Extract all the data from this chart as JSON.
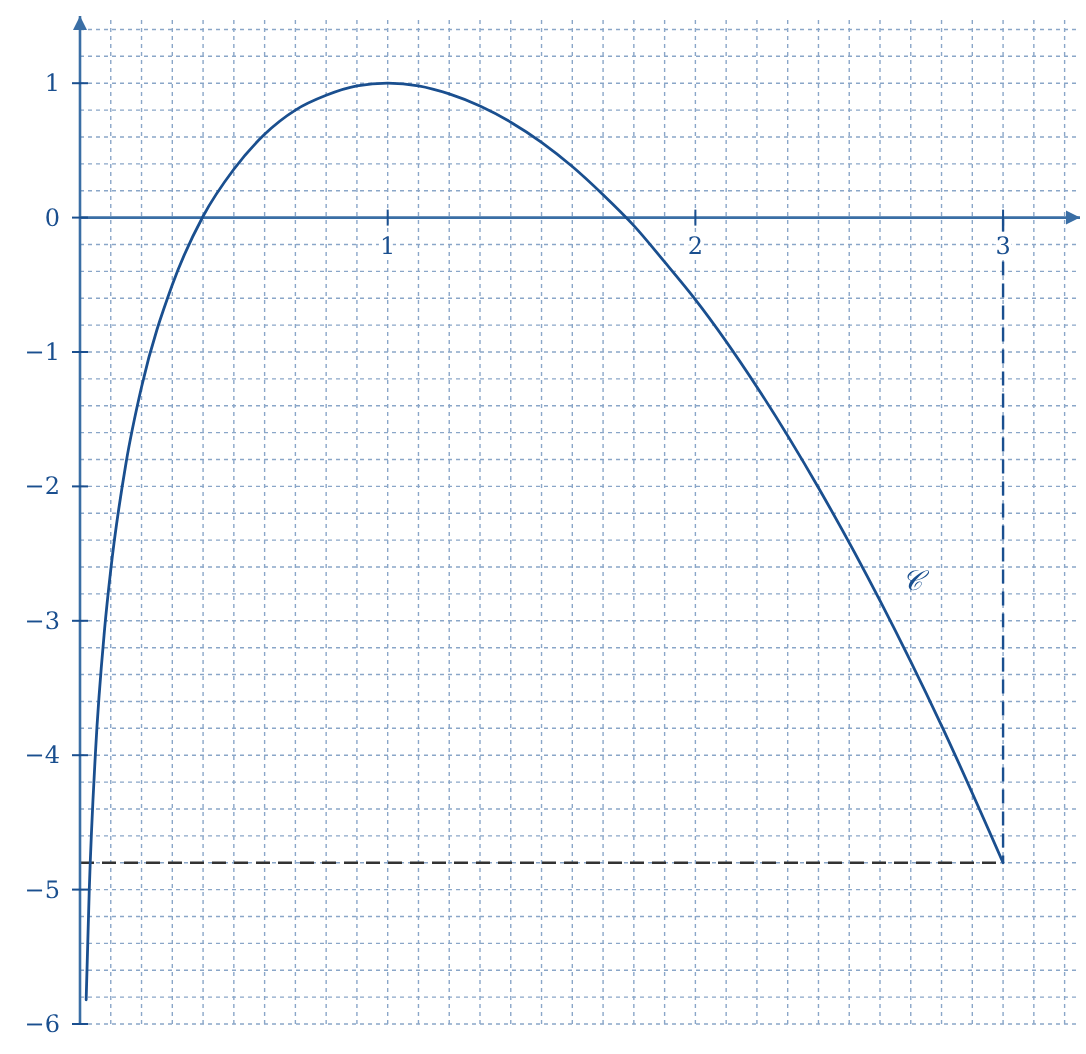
{
  "chart_data": {
    "type": "line",
    "x": [
      0.02,
      0.03,
      0.05,
      0.08,
      0.1,
      0.15,
      0.2,
      0.3,
      0.4,
      0.5,
      0.6,
      0.7,
      0.8,
      0.9,
      1,
      1.1,
      1.2,
      1.3,
      1.4,
      1.5,
      1.6,
      1.7,
      1.8,
      1.9,
      2,
      2.2,
      2.4,
      2.6,
      2.8,
      3
    ],
    "series": [
      {
        "color": "#1a4f8f",
        "values": [
          -5.82,
          -5.01,
          -3.99,
          -3.06,
          -2.62,
          -1.82,
          -1.26,
          -0.5,
          0.01,
          0.36,
          0.62,
          0.8,
          0.91,
          0.98,
          1,
          0.98,
          0.92,
          0.83,
          0.71,
          0.56,
          0.38,
          0.17,
          -0.06,
          -0.33,
          -0.61,
          -1.26,
          -2.01,
          -2.85,
          -3.78,
          -4.8
        ]
      }
    ],
    "xlim": [
      0,
      3.25
    ],
    "ylim": [
      -6,
      1.5
    ],
    "xticks": [
      {
        "value": 0.1,
        "label": null
      },
      {
        "value": 0.2,
        "label": null
      },
      {
        "value": 0.3,
        "label": null
      },
      {
        "value": 0.4,
        "label": null
      },
      {
        "value": 0.5,
        "label": null
      },
      {
        "value": 0.6,
        "label": null
      },
      {
        "value": 0.7,
        "label": null
      },
      {
        "value": 0.8,
        "label": null
      },
      {
        "value": 0.9,
        "label": null
      },
      1,
      {
        "value": 1.1,
        "label": null
      },
      {
        "value": 1.2,
        "label": null
      },
      {
        "value": 1.3,
        "label": null
      },
      {
        "value": 1.4,
        "label": null
      },
      {
        "value": 1.5,
        "label": null
      },
      {
        "value": 1.6,
        "label": null
      },
      {
        "value": 1.7,
        "label": null
      },
      {
        "value": 1.8,
        "label": null
      },
      {
        "value": 1.9,
        "label": null
      },
      2,
      {
        "value": 2.1,
        "label": null
      },
      {
        "value": 2.2,
        "label": null
      },
      {
        "value": 2.3,
        "label": null
      },
      {
        "value": 2.4,
        "label": null
      },
      {
        "value": 2.5,
        "label": null
      },
      {
        "value": 2.6,
        "label": null
      },
      {
        "value": 2.7,
        "label": null
      },
      {
        "value": 2.8,
        "label": null
      },
      {
        "value": 2.9,
        "label": null
      },
      3,
      {
        "value": 3.1,
        "label": null
      },
      {
        "value": 3.2,
        "label": null
      }
    ],
    "yticks": [
      -6,
      {
        "value": -5.8,
        "label": null
      },
      {
        "value": -5.6,
        "label": null
      },
      {
        "value": -5.4,
        "label": null
      },
      {
        "value": -5.2,
        "label": null
      },
      -5,
      {
        "value": -4.8,
        "label": null
      },
      {
        "value": -4.6,
        "label": null
      },
      {
        "value": -4.4,
        "label": null
      },
      {
        "value": -4.2,
        "label": null
      },
      -4,
      {
        "value": -3.8,
        "label": null
      },
      {
        "value": -3.6,
        "label": null
      },
      {
        "value": -3.4,
        "label": null
      },
      {
        "value": -3.2,
        "label": null
      },
      -3,
      {
        "value": -2.8,
        "label": null
      },
      {
        "value": -2.6,
        "label": null
      },
      {
        "value": -2.4,
        "label": null
      },
      {
        "value": -2.2,
        "label": null
      },
      -2,
      {
        "value": -1.8,
        "label": null
      },
      {
        "value": -1.6,
        "label": null
      },
      {
        "value": -1.4,
        "label": null
      },
      {
        "value": -1.2,
        "label": null
      },
      -1,
      {
        "value": -0.8,
        "label": null
      },
      {
        "value": -0.6,
        "label": null
      },
      {
        "value": -0.4,
        "label": null
      },
      {
        "value": -0.2,
        "label": null
      },
      0,
      {
        "value": 0.2,
        "label": null
      },
      {
        "value": 0.4,
        "label": null
      },
      {
        "value": 0.6,
        "label": null
      },
      {
        "value": 0.8,
        "label": null
      },
      1,
      {
        "value": 1.2,
        "label": null
      },
      {
        "value": 1.4,
        "label": null
      }
    ],
    "grid": true,
    "ref_lines": [
      {
        "axis": "y",
        "value": -4.8,
        "line_style": "dashed",
        "color": "#333333"
      },
      {
        "axis": "x",
        "value": 3,
        "line_style": "dashed",
        "color": "#1a4f8f"
      }
    ],
    "annotations": [
      "𝒞"
    ]
  }
}
